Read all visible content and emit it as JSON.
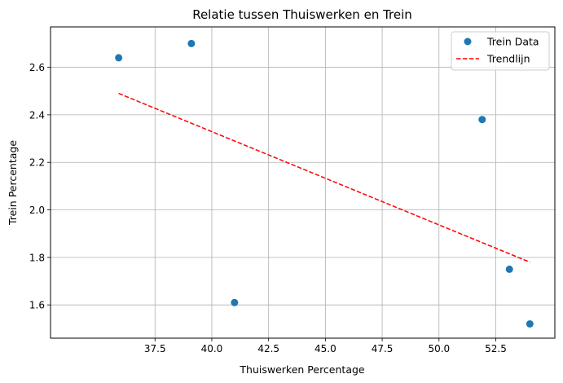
{
  "chart_data": {
    "type": "scatter",
    "title": "Relatie tussen Thuiswerken en Trein",
    "xlabel": "Thuiswerken Percentage",
    "ylabel": "Trein Percentage",
    "xlim": [
      32.9,
      55.1
    ],
    "ylim": [
      1.46,
      2.77
    ],
    "xticks": [
      37.5,
      40.0,
      42.5,
      45.0,
      47.5,
      50.0,
      52.5
    ],
    "xtick_labels": [
      "37.5",
      "40.0",
      "42.5",
      "45.0",
      "47.5",
      "50.0",
      "52.5"
    ],
    "yticks": [
      1.6,
      1.8,
      2.0,
      2.2,
      2.4,
      2.6
    ],
    "ytick_labels": [
      "1.6",
      "1.8",
      "2.0",
      "2.2",
      "2.4",
      "2.6"
    ],
    "grid": true,
    "legend_position": "top-right",
    "series": [
      {
        "name": "Trein Data",
        "kind": "scatter",
        "color": "#1f77b4",
        "points": [
          {
            "x": 35.9,
            "y": 2.64
          },
          {
            "x": 39.1,
            "y": 2.7
          },
          {
            "x": 41.0,
            "y": 1.61
          },
          {
            "x": 51.9,
            "y": 2.38
          },
          {
            "x": 53.1,
            "y": 1.75
          },
          {
            "x": 54.0,
            "y": 1.52
          }
        ]
      },
      {
        "name": "Trendlijn",
        "kind": "line",
        "style": "dashed",
        "color": "#ff0000",
        "points": [
          {
            "x": 35.9,
            "y": 2.49
          },
          {
            "x": 54.0,
            "y": 1.78
          }
        ]
      }
    ]
  }
}
